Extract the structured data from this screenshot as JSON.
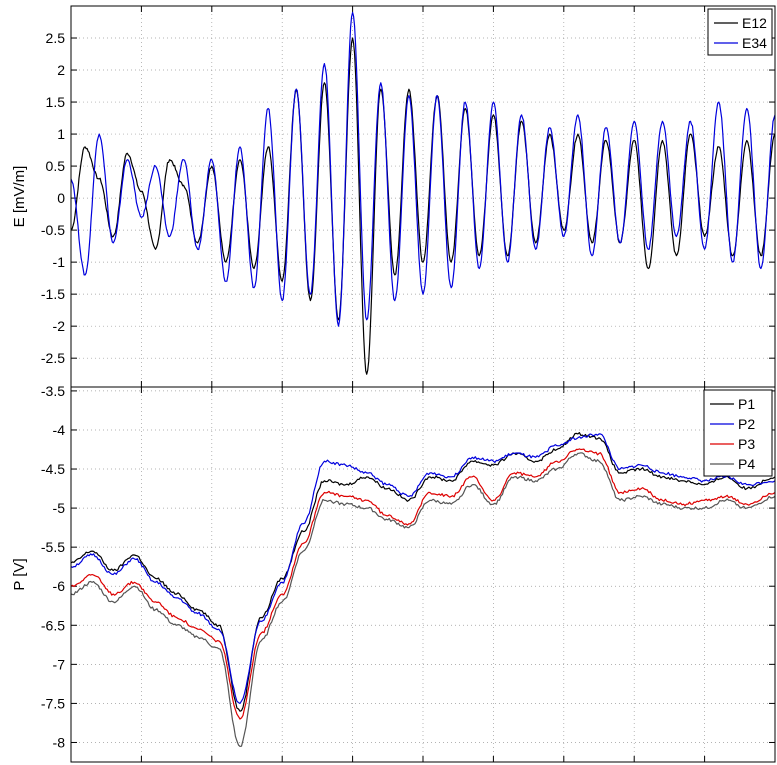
{
  "chart_data": [
    {
      "type": "line",
      "ylabel": "E [mV/m]",
      "ylim": [
        -2.95,
        3.0
      ],
      "yticks": [
        2.5,
        2,
        1.5,
        1,
        0.5,
        0,
        -0.5,
        -1,
        -1.5,
        -2,
        -2.5
      ],
      "ytick_labels": [
        "2.5",
        "2",
        "1.5",
        "1",
        "0.5",
        "0",
        "-0.5",
        "-1",
        "-1.5",
        "-2",
        "-2.5"
      ],
      "x_gridlines": 10,
      "grid": true,
      "legend": "top-right",
      "series": [
        {
          "name": "E12",
          "color": "#000000",
          "x": [
            0,
            0.2,
            0.4,
            0.6,
            0.8,
            1.0,
            1.2,
            1.4,
            1.6,
            1.8,
            2.0,
            2.2,
            2.4,
            2.6,
            2.8,
            3.0,
            3.2,
            3.4,
            3.6,
            3.8,
            4.0,
            4.2,
            4.4,
            4.6,
            4.8,
            5.0,
            5.2,
            5.4,
            5.6,
            5.8,
            6.0,
            6.2,
            6.4,
            6.6,
            6.8,
            7.0,
            7.2,
            7.4,
            7.6,
            7.8,
            8.0,
            8.2,
            8.4,
            8.6,
            8.8,
            9.0,
            9.2,
            9.4,
            9.6,
            9.8,
            10.0
          ],
          "y": [
            -0.5,
            0.8,
            0.3,
            -0.6,
            0.7,
            0.1,
            -0.8,
            0.6,
            0.2,
            -0.7,
            0.5,
            -1.0,
            0.6,
            -1.1,
            0.8,
            -1.3,
            1.7,
            -1.6,
            1.8,
            -1.9,
            2.5,
            -2.75,
            1.7,
            -1.2,
            1.7,
            -1.0,
            1.6,
            -1.0,
            1.4,
            -0.9,
            1.3,
            -0.9,
            1.2,
            -0.7,
            1.0,
            -0.5,
            1.0,
            -0.7,
            0.9,
            -0.7,
            0.9,
            -1.1,
            0.9,
            -0.9,
            1.0,
            -0.6,
            0.8,
            -0.9,
            0.9,
            -0.9,
            1.0
          ]
        },
        {
          "name": "E34",
          "color": "#0000dd",
          "x": [
            0,
            0.2,
            0.4,
            0.6,
            0.8,
            1.0,
            1.2,
            1.4,
            1.6,
            1.8,
            2.0,
            2.2,
            2.4,
            2.6,
            2.8,
            3.0,
            3.2,
            3.4,
            3.6,
            3.8,
            4.0,
            4.2,
            4.4,
            4.6,
            4.8,
            5.0,
            5.2,
            5.4,
            5.6,
            5.8,
            6.0,
            6.2,
            6.4,
            6.6,
            6.8,
            7.0,
            7.2,
            7.4,
            7.6,
            7.8,
            8.0,
            8.2,
            8.4,
            8.6,
            8.8,
            9.0,
            9.2,
            9.4,
            9.6,
            9.8,
            10.0
          ],
          "y": [
            0.3,
            -1.2,
            1.0,
            -0.7,
            0.6,
            -0.3,
            0.5,
            -0.6,
            0.6,
            -0.8,
            0.6,
            -1.3,
            0.8,
            -1.4,
            1.4,
            -1.6,
            1.7,
            -1.5,
            2.1,
            -2.0,
            2.9,
            -1.9,
            1.8,
            -1.6,
            1.6,
            -1.5,
            1.6,
            -1.4,
            1.5,
            -1.1,
            1.5,
            -1.0,
            1.3,
            -0.8,
            1.1,
            -0.6,
            1.3,
            -0.9,
            1.1,
            -0.7,
            1.2,
            -0.8,
            1.2,
            -0.6,
            1.2,
            -0.8,
            1.5,
            -1.0,
            1.4,
            -1.1,
            1.3
          ]
        }
      ]
    },
    {
      "type": "line",
      "ylabel": "P [V]",
      "ylim": [
        -8.25,
        -3.45
      ],
      "yticks": [
        -3.5,
        -4,
        -4.5,
        -5,
        -5.5,
        -6,
        -6.5,
        -7,
        -7.5,
        -8
      ],
      "ytick_labels": [
        "-3.5",
        "-4",
        "-4.5",
        "-5",
        "-5.5",
        "-6",
        "-6.5",
        "-7",
        "-7.5",
        "-8"
      ],
      "x_gridlines": 10,
      "grid": true,
      "legend": "top-right",
      "series": [
        {
          "name": "P1",
          "color": "#000000",
          "x": [
            0,
            0.3,
            0.6,
            0.9,
            1.2,
            1.5,
            1.8,
            2.1,
            2.4,
            2.7,
            3.0,
            3.3,
            3.6,
            3.9,
            4.2,
            4.5,
            4.8,
            5.1,
            5.4,
            5.7,
            6.0,
            6.3,
            6.6,
            6.9,
            7.2,
            7.5,
            7.8,
            8.1,
            8.4,
            8.7,
            9.0,
            9.3,
            9.6,
            10.0
          ],
          "y": [
            -5.7,
            -5.55,
            -5.8,
            -5.6,
            -5.9,
            -6.1,
            -6.3,
            -6.5,
            -7.6,
            -6.4,
            -5.9,
            -5.3,
            -4.65,
            -4.7,
            -4.6,
            -4.75,
            -4.9,
            -4.6,
            -4.65,
            -4.4,
            -4.45,
            -4.3,
            -4.4,
            -4.25,
            -4.05,
            -4.1,
            -4.55,
            -4.5,
            -4.6,
            -4.65,
            -4.7,
            -4.6,
            -4.75,
            -4.6
          ]
        },
        {
          "name": "P2",
          "color": "#0000dd",
          "x": [
            0,
            0.3,
            0.6,
            0.9,
            1.2,
            1.5,
            1.8,
            2.1,
            2.4,
            2.7,
            3.0,
            3.3,
            3.6,
            3.9,
            4.2,
            4.5,
            4.8,
            5.1,
            5.4,
            5.7,
            6.0,
            6.3,
            6.6,
            6.9,
            7.2,
            7.5,
            7.8,
            8.1,
            8.4,
            8.7,
            9.0,
            9.3,
            9.6,
            10.0
          ],
          "y": [
            -5.75,
            -5.6,
            -5.85,
            -5.65,
            -5.95,
            -6.15,
            -6.35,
            -6.55,
            -7.5,
            -6.45,
            -5.95,
            -5.2,
            -4.4,
            -4.45,
            -4.55,
            -4.7,
            -4.85,
            -4.55,
            -4.6,
            -4.35,
            -4.4,
            -4.3,
            -4.35,
            -4.2,
            -4.1,
            -4.05,
            -4.5,
            -4.45,
            -4.55,
            -4.6,
            -4.65,
            -4.6,
            -4.7,
            -4.65
          ]
        },
        {
          "name": "P3",
          "color": "#dd0000",
          "x": [
            0,
            0.3,
            0.6,
            0.9,
            1.2,
            1.5,
            1.8,
            2.1,
            2.4,
            2.7,
            3.0,
            3.3,
            3.6,
            3.9,
            4.2,
            4.5,
            4.8,
            5.1,
            5.4,
            5.7,
            6.0,
            6.3,
            6.6,
            6.9,
            7.2,
            7.5,
            7.8,
            8.1,
            8.4,
            8.7,
            9.0,
            9.3,
            9.6,
            10.0
          ],
          "y": [
            -6.0,
            -5.85,
            -6.1,
            -5.95,
            -6.2,
            -6.4,
            -6.55,
            -6.7,
            -7.7,
            -6.6,
            -6.1,
            -5.45,
            -4.8,
            -4.85,
            -4.9,
            -5.1,
            -5.2,
            -4.8,
            -4.85,
            -4.6,
            -4.9,
            -4.55,
            -4.6,
            -4.4,
            -4.25,
            -4.3,
            -4.8,
            -4.75,
            -4.9,
            -4.95,
            -4.9,
            -4.85,
            -4.95,
            -4.8
          ]
        },
        {
          "name": "P4",
          "color": "#555555",
          "x": [
            0,
            0.3,
            0.6,
            0.9,
            1.2,
            1.5,
            1.8,
            2.1,
            2.4,
            2.7,
            3.0,
            3.3,
            3.6,
            3.9,
            4.2,
            4.5,
            4.8,
            5.1,
            5.4,
            5.7,
            6.0,
            6.3,
            6.6,
            6.9,
            7.2,
            7.5,
            7.8,
            8.1,
            8.4,
            8.7,
            9.0,
            9.3,
            9.6,
            10.0
          ],
          "y": [
            -6.1,
            -5.95,
            -6.2,
            -6.0,
            -6.3,
            -6.5,
            -6.65,
            -6.8,
            -8.05,
            -6.7,
            -6.2,
            -5.55,
            -4.9,
            -4.95,
            -5.0,
            -5.15,
            -5.25,
            -4.9,
            -4.95,
            -4.7,
            -4.95,
            -4.6,
            -4.65,
            -4.5,
            -4.3,
            -4.4,
            -4.9,
            -4.85,
            -4.95,
            -5.0,
            -5.0,
            -4.9,
            -5.0,
            -4.85
          ]
        }
      ]
    }
  ]
}
